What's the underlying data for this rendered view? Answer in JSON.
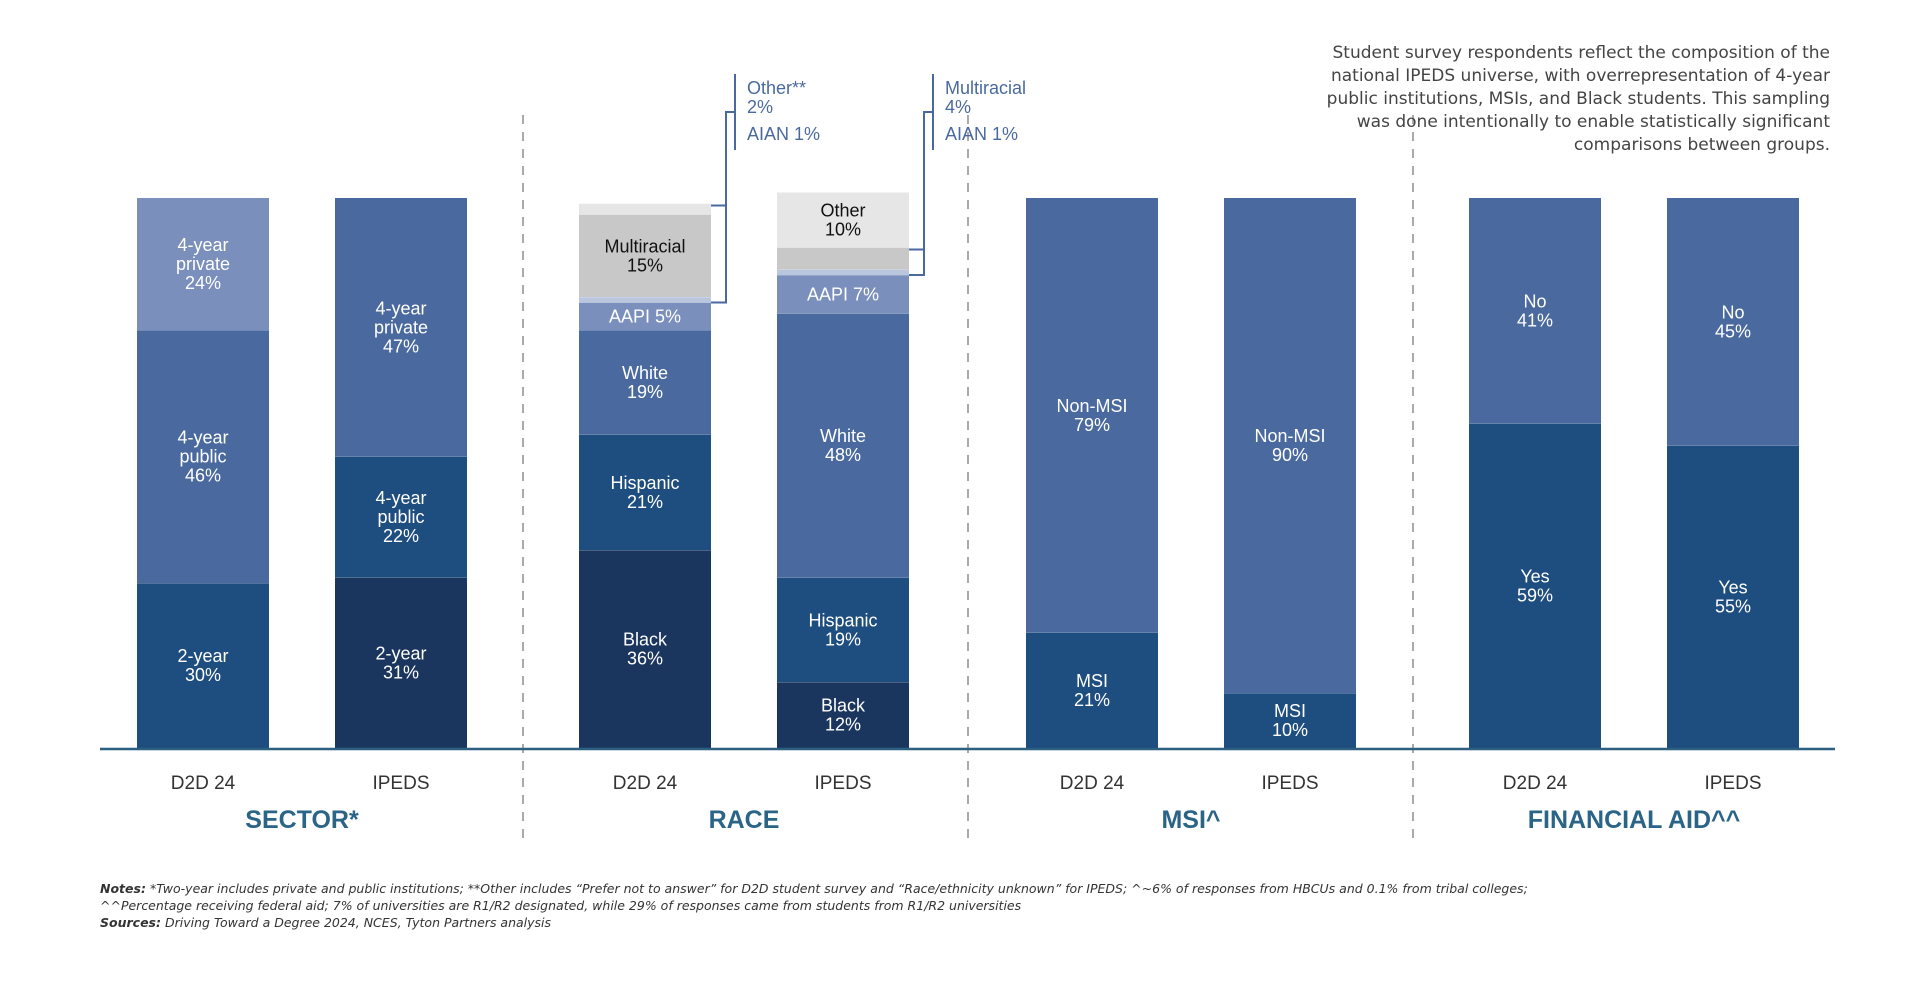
{
  "note": "Student survey respondents reflect the composition of the national IPEDS universe, with overrepresentation of 4-year public institutions, MSIs, and Black students. This sampling was done intentionally to enable statistically significant comparisons between groups.",
  "footnotes": {
    "notes_label": "Notes:",
    "notes_text": "*Two-year includes private and public institutions;  **Other includes “Prefer not to answer” for D2D student survey and “Race/ethnicity unknown” for IPEDS; ^~6% of responses from HBCUs and 0.1% from tribal colleges; ^^Percentage receiving federal aid; 7% of universities are R1/R2 designated, while 29% of responses came from students from R1/R2 universities",
    "sources_label": "Sources:",
    "sources_text": "Driving Toward a Degree 2024, NCES, Tyton Partners analysis"
  },
  "colors": {
    "baseline": "#2d5f80",
    "group_title": "#2a6487",
    "bar_label": "#333333",
    "callout": "#4a6a9f",
    "divider": "#aaaaaa"
  },
  "chart_data": {
    "type": "bar",
    "stacked": true,
    "normalized": true,
    "unit": "%",
    "groups": [
      {
        "title": "SECTOR*",
        "bars": [
          {
            "label": "D2D 24",
            "segments": [
              {
                "name": "2-year",
                "value": 30,
                "label": "2-year\n30%",
                "color": "#1e4d7f",
                "text_color": "#ffffff"
              },
              {
                "name": "4-year public",
                "value": 46,
                "label": "4-year\npublic\n46%",
                "color": "#4a6a9f",
                "text_color": "#ffffff"
              },
              {
                "name": "4-year private",
                "value": 24,
                "label": "4-year\nprivate\n24%",
                "color": "#7a8fbb",
                "text_color": "#ffffff"
              }
            ]
          },
          {
            "label": "IPEDS",
            "segments": [
              {
                "name": "2-year",
                "value": 31,
                "label": "2-year\n31%",
                "color": "#1a355e",
                "text_color": "#ffffff"
              },
              {
                "name": "4-year public",
                "value": 22,
                "label": "4-year\npublic\n22%",
                "color": "#1e4d7f",
                "text_color": "#ffffff"
              },
              {
                "name": "4-year private",
                "value": 47,
                "label": "4-year\nprivate\n47%",
                "color": "#4a6a9f",
                "text_color": "#ffffff"
              }
            ]
          }
        ]
      },
      {
        "title": "RACE",
        "bars": [
          {
            "label": "D2D 24",
            "segments": [
              {
                "name": "Black",
                "value": 36,
                "label": "Black\n36%",
                "color": "#1a355e",
                "text_color": "#ffffff"
              },
              {
                "name": "Hispanic",
                "value": 21,
                "label": "Hispanic\n21%",
                "color": "#1e4d7f",
                "text_color": "#ffffff"
              },
              {
                "name": "White",
                "value": 19,
                "label": "White\n19%",
                "color": "#4a6a9f",
                "text_color": "#ffffff"
              },
              {
                "name": "AAPI",
                "value": 5,
                "label": "AAPI 5%",
                "color": "#7a8fbb",
                "text_color": "#ffffff"
              },
              {
                "name": "AIAN",
                "value": 1,
                "label": "",
                "color": "#b9c6de",
                "text_color": "#ffffff"
              },
              {
                "name": "Multiracial",
                "value": 15,
                "label": "Multiracial\n15%",
                "color": "#c8c8c8",
                "text_color": "#111111"
              },
              {
                "name": "Other",
                "value": 2,
                "label": "",
                "color": "#e6e6e6",
                "text_color": "#111111"
              }
            ]
          },
          {
            "label": "IPEDS",
            "segments": [
              {
                "name": "Black",
                "value": 12,
                "label": "Black\n12%",
                "color": "#1a355e",
                "text_color": "#ffffff"
              },
              {
                "name": "Hispanic",
                "value": 19,
                "label": "Hispanic\n19%",
                "color": "#1e4d7f",
                "text_color": "#ffffff"
              },
              {
                "name": "White",
                "value": 48,
                "label": "White\n48%",
                "color": "#4a6a9f",
                "text_color": "#ffffff"
              },
              {
                "name": "AAPI",
                "value": 7,
                "label": "AAPI 7%",
                "color": "#7a8fbb",
                "text_color": "#ffffff"
              },
              {
                "name": "AIAN",
                "value": 1,
                "label": "",
                "color": "#b9c6de",
                "text_color": "#ffffff"
              },
              {
                "name": "Multiracial",
                "value": 4,
                "label": "",
                "color": "#c8c8c8",
                "text_color": "#111111"
              },
              {
                "name": "Other",
                "value": 10,
                "label": "Other\n10%",
                "color": "#e6e6e6",
                "text_color": "#111111"
              }
            ]
          }
        ]
      },
      {
        "title": "MSI^",
        "bars": [
          {
            "label": "D2D 24",
            "segments": [
              {
                "name": "MSI",
                "value": 21,
                "label": "MSI\n21%",
                "color": "#1e4d7f",
                "text_color": "#ffffff"
              },
              {
                "name": "Non-MSI",
                "value": 79,
                "label": "Non-MSI\n79%",
                "color": "#4a6a9f",
                "text_color": "#ffffff"
              }
            ]
          },
          {
            "label": "IPEDS",
            "segments": [
              {
                "name": "MSI",
                "value": 10,
                "label": "MSI\n10%",
                "color": "#1e4d7f",
                "text_color": "#ffffff"
              },
              {
                "name": "Non-MSI",
                "value": 90,
                "label": "Non-MSI\n90%",
                "color": "#4a6a9f",
                "text_color": "#ffffff"
              }
            ]
          }
        ]
      },
      {
        "title": "FINANCIAL AID^^",
        "bars": [
          {
            "label": "D2D 24",
            "segments": [
              {
                "name": "Yes",
                "value": 59,
                "label": "Yes\n59%",
                "color": "#1e4d7f",
                "text_color": "#ffffff"
              },
              {
                "name": "No",
                "value": 41,
                "label": "No\n41%",
                "color": "#4a6a9f",
                "text_color": "#ffffff"
              }
            ]
          },
          {
            "label": "IPEDS",
            "segments": [
              {
                "name": "Yes",
                "value": 55,
                "label": "Yes\n55%",
                "color": "#1e4d7f",
                "text_color": "#ffffff"
              },
              {
                "name": "No",
                "value": 45,
                "label": "No\n45%",
                "color": "#4a6a9f",
                "text_color": "#ffffff"
              }
            ]
          }
        ]
      }
    ],
    "callouts": [
      {
        "group": "RACE",
        "bar": "D2D 24",
        "lines": [
          "Other**",
          "2%"
        ],
        "second": "AIAN 1%"
      },
      {
        "group": "RACE",
        "bar": "IPEDS",
        "lines": [
          "Multiracial",
          "4%"
        ],
        "second": "AIAN 1%"
      }
    ]
  }
}
